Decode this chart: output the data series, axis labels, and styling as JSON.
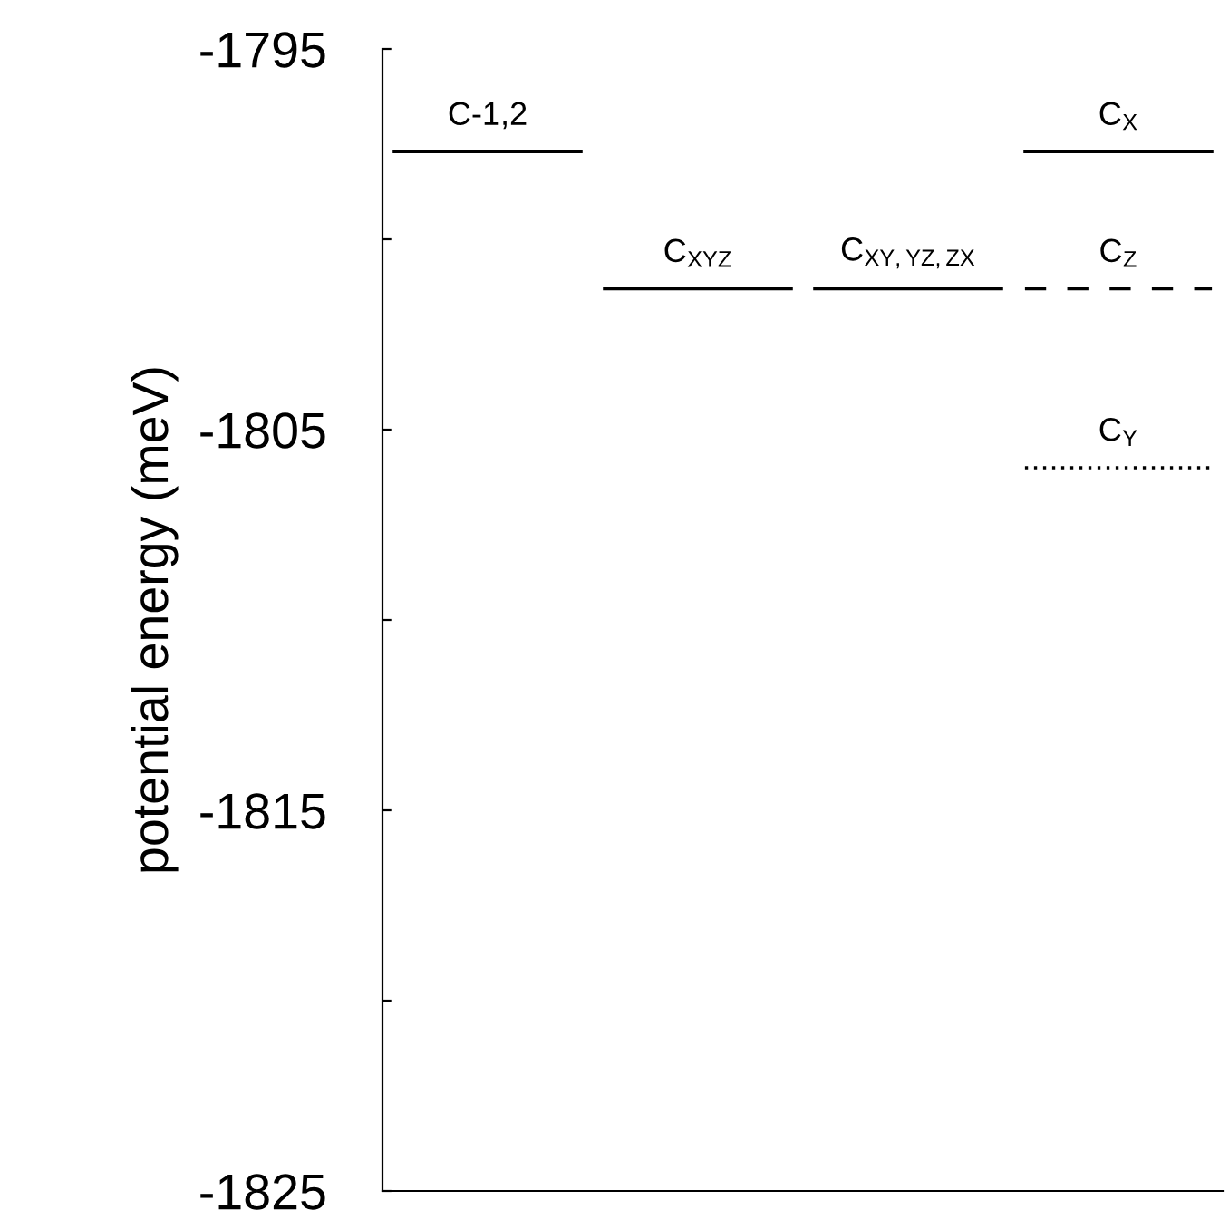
{
  "chart_data": {
    "type": "line",
    "ylabel": "potential energy (meV)",
    "categories": [
      null,
      null,
      null,
      null,
      null,
      null,
      null,
      null,
      null,
      null,
      null,
      null,
      null,
      null,
      null,
      null,
      null,
      null,
      null,
      null,
      null,
      null,
      null,
      null,
      null,
      null,
      null,
      null,
      null,
      null,
      null,
      null,
      null,
      null,
      null,
      null
    ],
    "ylim": [
      -1825,
      -1795
    ],
    "yticks": [
      -1795,
      {
        "value": -1800,
        "label": null
      },
      -1805,
      {
        "value": -1810,
        "label": null
      },
      -1815,
      {
        "value": -1820,
        "label": null
      },
      -1825
    ],
    "tick_labels": "y",
    "grid": false,
    "legend": false,
    "marker": "none",
    "series": [
      {
        "name": "C-1,2",
        "color": "#000000",
        "line_style": "solid",
        "values": [
          -1797.7,
          -1797.7,
          -1797.7,
          -1797.7,
          -1797.7,
          -1797.7,
          -1797.7,
          -1797.7,
          -1797.7,
          null,
          null,
          null,
          null,
          null,
          null,
          null,
          null,
          null,
          null,
          null,
          null,
          null,
          null,
          null,
          null,
          null,
          null,
          null,
          null,
          null,
          null,
          null,
          null,
          null,
          null,
          null
        ]
      },
      {
        "name": "C$_{XYZ}$",
        "color": "#000000",
        "line_style": "solid",
        "values": [
          null,
          null,
          null,
          null,
          null,
          null,
          null,
          null,
          null,
          -1801.3,
          -1801.3,
          -1801.3,
          -1801.3,
          -1801.3,
          -1801.3,
          -1801.3,
          -1801.3,
          -1801.3,
          null,
          null,
          null,
          null,
          null,
          null,
          null,
          null,
          null,
          null,
          null,
          null,
          null,
          null,
          null,
          null,
          null,
          null
        ]
      },
      {
        "name": "C$_{XY,YZ,ZX}$",
        "color": "#000000",
        "line_style": "solid",
        "values": [
          null,
          null,
          null,
          null,
          null,
          null,
          null,
          null,
          null,
          null,
          null,
          null,
          null,
          null,
          null,
          null,
          null,
          null,
          -1801.3,
          -1801.3,
          -1801.3,
          -1801.3,
          -1801.3,
          -1801.3,
          -1801.3,
          -1801.3,
          -1801.3,
          null,
          null,
          null,
          null,
          null,
          null,
          null,
          null,
          null
        ]
      },
      {
        "name": "C$_{X}$",
        "color": "#000000",
        "line_style": "solid",
        "values": [
          null,
          null,
          null,
          null,
          null,
          null,
          null,
          null,
          null,
          null,
          null,
          null,
          null,
          null,
          null,
          null,
          null,
          null,
          null,
          null,
          null,
          null,
          null,
          null,
          null,
          null,
          null,
          -1797.7,
          -1797.7,
          -1797.7,
          -1797.7,
          -1797.7,
          -1797.7,
          -1797.7,
          -1797.7,
          -1797.7
        ]
      },
      {
        "name": "C$_{Z}$",
        "color": "#000000",
        "line_style": "dashed",
        "values": [
          null,
          null,
          null,
          null,
          null,
          null,
          null,
          null,
          null,
          null,
          null,
          null,
          null,
          null,
          null,
          null,
          null,
          null,
          null,
          null,
          null,
          null,
          null,
          null,
          null,
          null,
          null,
          -1801.3,
          -1801.3,
          -1801.3,
          -1801.3,
          -1801.3,
          -1801.3,
          -1801.3,
          -1801.3,
          -1801.3
        ]
      },
      {
        "name": "C$_{Y}$",
        "color": "#000000",
        "line_style": "dotted",
        "values": [
          null,
          null,
          null,
          null,
          null,
          null,
          null,
          null,
          null,
          null,
          null,
          null,
          null,
          null,
          null,
          null,
          null,
          null,
          null,
          null,
          null,
          null,
          null,
          null,
          null,
          null,
          null,
          -1806.0,
          -1806.0,
          -1806.0,
          -1806.0,
          -1806.0,
          -1806.0,
          -1806.0,
          -1806.0,
          -1806.0
        ]
      }
    ]
  }
}
